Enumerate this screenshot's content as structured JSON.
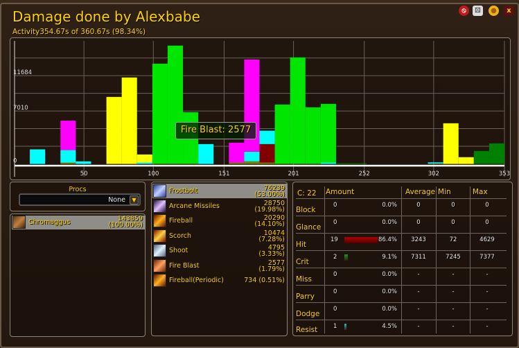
{
  "header": {
    "title": "Damage done by Alexbabe",
    "activity": "Activity354.67s of 360.67s (98.34%)",
    "buttons": [
      {
        "icon": "no-sign-icon",
        "color": "#c0181b"
      },
      {
        "icon": "dice-icon",
        "color": "#e0e0e0"
      },
      {
        "icon": "coin-icon",
        "color": "#f0b020"
      },
      {
        "icon": "close-icon",
        "label": "x",
        "color": "#ffd100"
      }
    ]
  },
  "tooltip": "Fire Blast: 2577",
  "chart_data": {
    "type": "bar",
    "stacked": true,
    "xlabel": "",
    "ylabel": "",
    "x_ticks": [
      "50",
      "100",
      "151",
      "201",
      "252",
      "302",
      "353"
    ],
    "x_tick_values": [
      50,
      100,
      151,
      201,
      252,
      302,
      353
    ],
    "y_ticks": [
      "0",
      "7010",
      "11684"
    ],
    "y_tick_values": [
      0,
      7010,
      11684
    ],
    "xlim": [
      0,
      353
    ],
    "ylim": [
      0,
      16000
    ],
    "grid": true,
    "bin_seconds": 11.03,
    "x": [
      0,
      11.03,
      22.06,
      33.09,
      44.13,
      55.16,
      66.19,
      77.22,
      88.25,
      99.28,
      110.31,
      121.34,
      132.38,
      143.41,
      154.44,
      165.47,
      176.5,
      187.53,
      198.56,
      209.59,
      220.63,
      231.66,
      242.69,
      253.72,
      264.75,
      275.78,
      286.81,
      297.84,
      308.88,
      319.91,
      330.94,
      341.97
    ],
    "series": [
      {
        "color": "#808000",
        "values": [
          0,
          0,
          0,
          180,
          0,
          0,
          0,
          0,
          0,
          0,
          0,
          0,
          0,
          0,
          180,
          340,
          180,
          0,
          0,
          0,
          0,
          0,
          0,
          0,
          0,
          0,
          0,
          60,
          0,
          0,
          0,
          0
        ]
      },
      {
        "color": "#800000",
        "values": [
          0,
          0,
          0,
          0,
          0,
          0,
          0,
          0,
          0,
          0,
          0,
          0,
          0,
          0,
          0,
          0,
          2450,
          0,
          0,
          0,
          0,
          0,
          0,
          0,
          0,
          0,
          0,
          0,
          0,
          0,
          0,
          0
        ]
      },
      {
        "color": "#00ffff",
        "values": [
          0,
          1930,
          0,
          1650,
          340,
          0,
          0,
          0,
          180,
          0,
          0,
          0,
          2630,
          0,
          0,
          1280,
          1770,
          0,
          0,
          0,
          180,
          0,
          0,
          0,
          0,
          0,
          0,
          150,
          0,
          0,
          0,
          0
        ]
      },
      {
        "color": "#ff00ff",
        "values": [
          0,
          0,
          0,
          3900,
          0,
          0,
          0,
          0,
          0,
          0,
          0,
          0,
          0,
          0,
          2630,
          12200,
          0,
          0,
          0,
          0,
          0,
          0,
          0,
          0,
          0,
          0,
          0,
          0,
          0,
          0,
          0,
          0
        ]
      },
      {
        "color": "#ffff00",
        "values": [
          0,
          0,
          0,
          0,
          0,
          0,
          8870,
          11440,
          1070,
          0,
          0,
          0,
          0,
          0,
          0,
          0,
          0,
          0,
          0,
          0,
          0,
          0,
          0,
          0,
          0,
          0,
          0,
          0,
          5380,
          890,
          0,
          0
        ]
      },
      {
        "color": "#00e600",
        "values": [
          0,
          0,
          0,
          0,
          0,
          0,
          0,
          0,
          0,
          13270,
          15660,
          6850,
          0,
          0,
          0,
          0,
          0,
          7860,
          14100,
          7490,
          7770,
          0,
          0,
          0,
          0,
          0,
          0,
          0,
          0,
          0,
          0,
          0
        ]
      },
      {
        "color": "#008000",
        "values": [
          0,
          0,
          0,
          0,
          0,
          0,
          0,
          0,
          0,
          0,
          0,
          0,
          0,
          0,
          0,
          0,
          0,
          0,
          0,
          0,
          0,
          90,
          90,
          0,
          0,
          0,
          0,
          0,
          0,
          0,
          1710,
          2720
        ]
      }
    ]
  },
  "procs": {
    "label": "Procs",
    "selected": "None"
  },
  "targets": [
    {
      "name": "Chromaggus",
      "amount": "143859",
      "pct": "(100.00%)"
    }
  ],
  "spells": [
    {
      "name": "Frostbolt",
      "amount": "76239",
      "pct": "(53.00%)",
      "icon": "frostbolt-icon",
      "c1": "#3040a0",
      "c2": "#c0d0ff"
    },
    {
      "name": "Arcane Missiles",
      "amount": "28750",
      "pct": "(19.98%)",
      "icon": "arcane-missiles-icon",
      "c1": "#201040",
      "c2": "#e0c0ff"
    },
    {
      "name": "Fireball",
      "amount": "20290",
      "pct": "(14.10%)",
      "icon": "fireball-icon",
      "c1": "#601000",
      "c2": "#ffb020"
    },
    {
      "name": "Scorch",
      "amount": "10474",
      "pct": "(7.28%)",
      "icon": "scorch-icon",
      "c1": "#801000",
      "c2": "#ffd040"
    },
    {
      "name": "Shoot",
      "amount": "4795",
      "pct": "(3.33%)",
      "icon": "shoot-icon",
      "c1": "#506080",
      "c2": "#e0f0ff"
    },
    {
      "name": "Fire Blast",
      "amount": "2577",
      "pct": "(1.79%)",
      "icon": "fire-blast-icon",
      "c1": "#702000",
      "c2": "#ffa060"
    },
    {
      "name": "Fireball(Periodic)",
      "amount": "734 (0.51%)",
      "pct": "",
      "icon": "fireball-periodic-icon",
      "c1": "#601000",
      "c2": "#ffb020"
    }
  ],
  "stats": {
    "count": "C: 22",
    "headers": [
      "Amount",
      "Average",
      "Min",
      "Max"
    ],
    "rows": [
      {
        "label": "Block",
        "count": "0",
        "pct": "0.0%",
        "pct_value": 0,
        "avg": "0",
        "min": "0",
        "max": "0",
        "bar_color": ""
      },
      {
        "label": "Glance",
        "count": "0",
        "pct": "0.0%",
        "pct_value": 0,
        "avg": "0",
        "min": "0",
        "max": "0",
        "bar_color": ""
      },
      {
        "label": "Hit",
        "count": "19",
        "pct": "86.4%",
        "pct_value": 86.4,
        "avg": "3243",
        "min": "72",
        "max": "4629",
        "bar_color": "#b00000"
      },
      {
        "label": "Crit",
        "count": "2",
        "pct": "9.1%",
        "pct_value": 9.1,
        "avg": "7311",
        "min": "7245",
        "max": "7377",
        "bar_color": "#10a010"
      },
      {
        "label": "Miss",
        "count": "0",
        "pct": "0.0%",
        "pct_value": 0,
        "avg": "-",
        "min": "-",
        "max": "-",
        "bar_color": ""
      },
      {
        "label": "Parry",
        "count": "0",
        "pct": "0.0%",
        "pct_value": 0,
        "avg": "-",
        "min": "-",
        "max": "-",
        "bar_color": ""
      },
      {
        "label": "Dodge",
        "count": "0",
        "pct": "0.0%",
        "pct_value": 0,
        "avg": "-",
        "min": "-",
        "max": "-",
        "bar_color": ""
      },
      {
        "label": "Resist",
        "count": "1",
        "pct": "4.5%",
        "pct_value": 4.5,
        "avg": "-",
        "min": "-",
        "max": "-",
        "bar_color": "#20c0c0"
      }
    ]
  }
}
